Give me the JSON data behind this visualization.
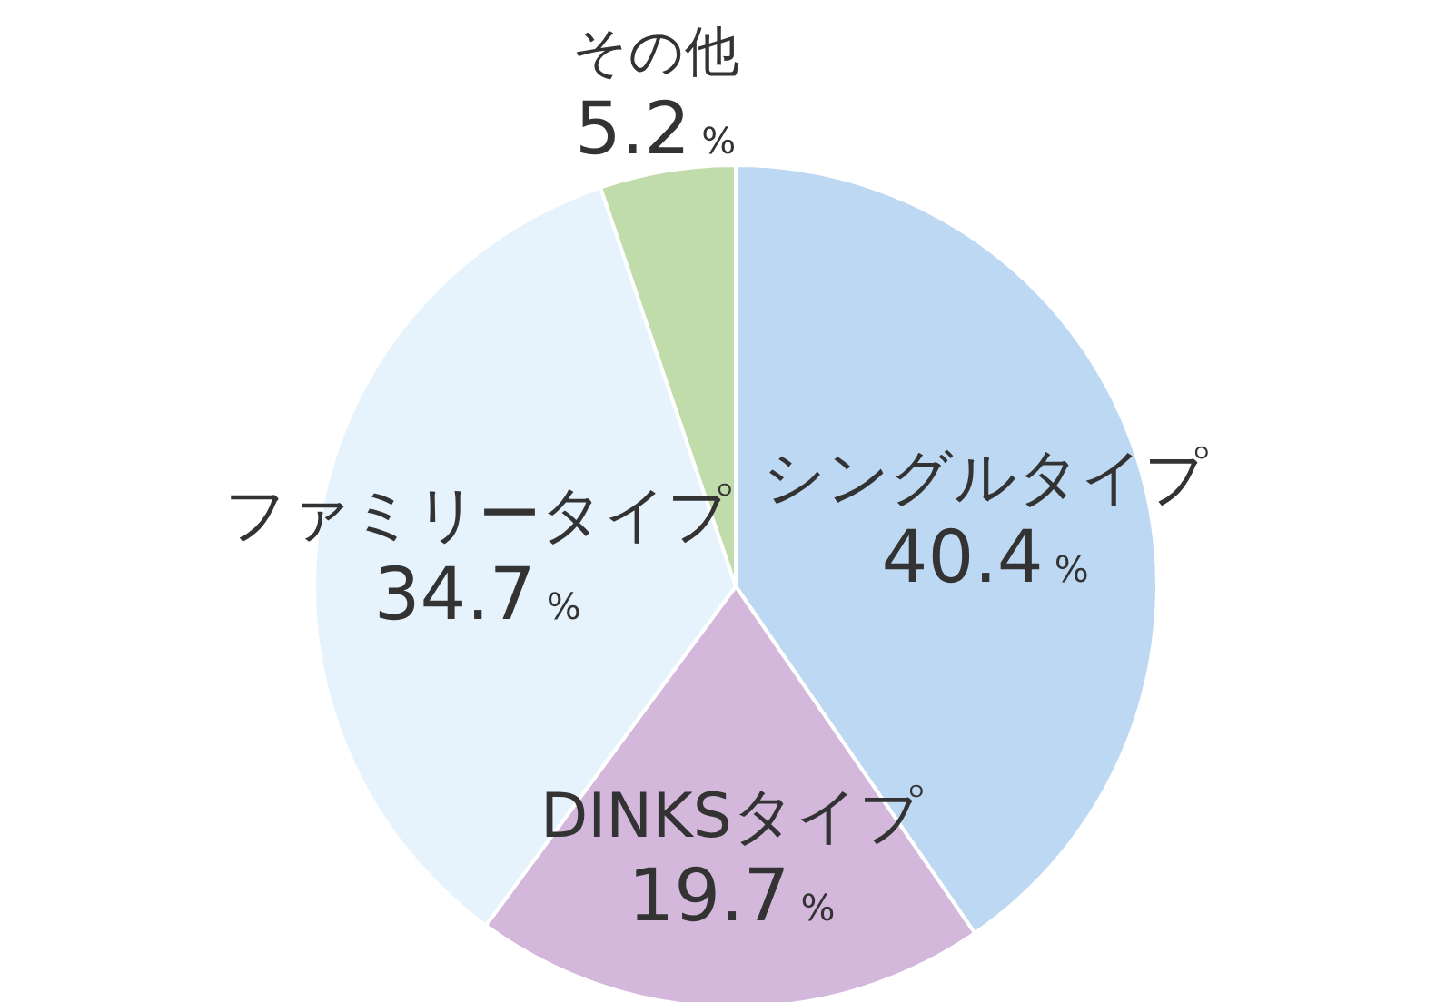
{
  "chart_data": {
    "type": "pie",
    "categories": [
      "シングルタイプ",
      "DINKSタイプ",
      "ファミリータイプ",
      "その他"
    ],
    "values": [
      40.4,
      19.7,
      34.7,
      5.2
    ],
    "colors": [
      "#bdd8f2",
      "#d3b8dc",
      "#e6f3fc",
      "#bfdcaa"
    ],
    "value_labels": [
      "40.4%",
      "19.7%",
      "34.7%",
      "5.2%"
    ]
  }
}
